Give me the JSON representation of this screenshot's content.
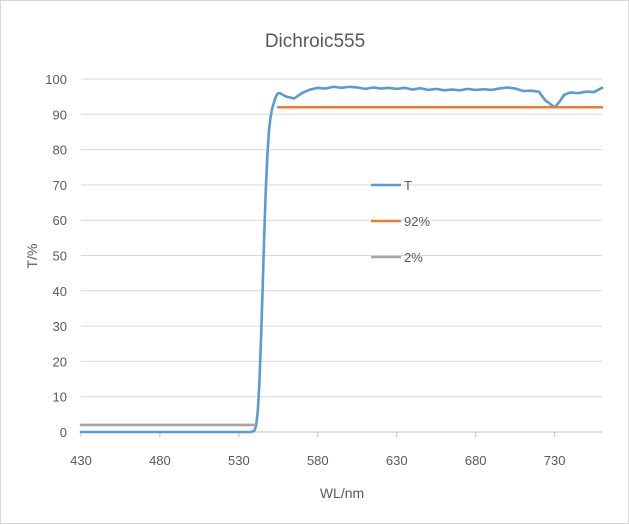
{
  "chart_data": {
    "type": "line",
    "title": "Dichroic555",
    "xlabel": "WL/nm",
    "ylabel": "T/%",
    "xlim": [
      430,
      760
    ],
    "ylim": [
      0,
      100
    ],
    "x_ticks": [
      430,
      480,
      530,
      580,
      630,
      680,
      730
    ],
    "y_ticks": [
      0,
      10,
      20,
      30,
      40,
      50,
      60,
      70,
      80,
      90,
      100
    ],
    "grid": "horizontal",
    "legend_position": "center-right",
    "series": [
      {
        "name": "T",
        "color": "#5b9bd5",
        "x": [
          430,
          500,
          538,
          540,
          541,
          542,
          543,
          544,
          545,
          546,
          547,
          548,
          549,
          550,
          551,
          552,
          553,
          554,
          555,
          556,
          558,
          560,
          565,
          570,
          575,
          580,
          585,
          590,
          595,
          600,
          605,
          610,
          615,
          620,
          625,
          630,
          635,
          640,
          645,
          650,
          655,
          660,
          665,
          670,
          675,
          680,
          685,
          690,
          695,
          700,
          705,
          710,
          715,
          720,
          724,
          727,
          730,
          733,
          736,
          740,
          745,
          750,
          755,
          760
        ],
        "y": [
          0,
          0,
          0,
          0.5,
          2,
          6,
          14,
          26,
          40,
          55,
          68,
          78,
          85,
          89,
          91.5,
          93,
          94.5,
          95.5,
          96,
          96,
          95.5,
          95,
          94.5,
          96,
          97,
          97.5,
          97.3,
          97.8,
          97.5,
          97.8,
          97.6,
          97.2,
          97.6,
          97.3,
          97.5,
          97.2,
          97.5,
          97.0,
          97.4,
          96.9,
          97.2,
          96.8,
          97.0,
          96.8,
          97.2,
          96.9,
          97.1,
          96.9,
          97.3,
          97.6,
          97.3,
          96.6,
          96.7,
          96.4,
          94,
          93,
          92,
          93.5,
          95.5,
          96.2,
          96.0,
          96.4,
          96.3,
          97.5
        ]
      },
      {
        "name": "92%",
        "color": "#ed7d31",
        "x": [
          555,
          760
        ],
        "y": [
          92,
          92
        ]
      },
      {
        "name": "2%",
        "color": "#a5a5a5",
        "x": [
          430,
          540
        ],
        "y": [
          2,
          2
        ]
      }
    ]
  }
}
